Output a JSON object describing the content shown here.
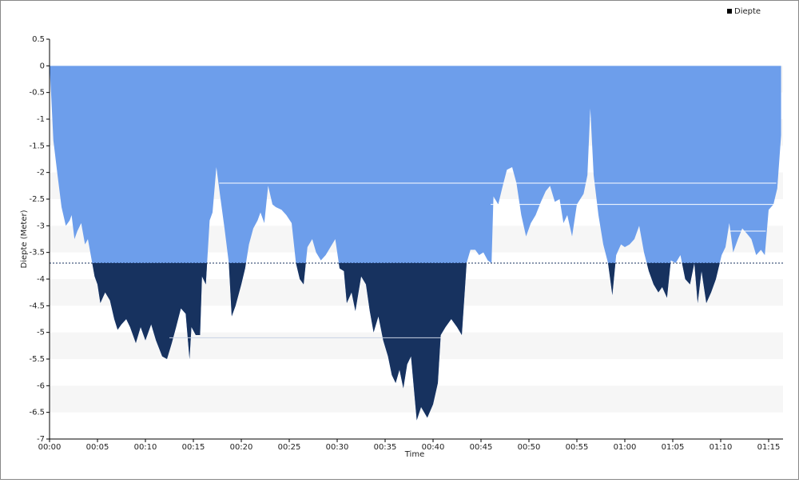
{
  "chart_data": {
    "type": "area",
    "y_label": "Diepte (Meter)",
    "x_label": "Time",
    "legend": "top-right",
    "grid": true,
    "xlim": [
      0,
      76.5
    ],
    "ylim": [
      -7,
      0.5
    ],
    "yticks": [
      0.5,
      0,
      -0.5,
      -1,
      -1.5,
      -2,
      -2.5,
      -3,
      -3.5,
      -4,
      -4.5,
      -5,
      -5.5,
      -6,
      -6.5,
      -7
    ],
    "xticks": [
      {
        "value": 0,
        "label": "00:00"
      },
      {
        "value": 5,
        "label": "00:05"
      },
      {
        "value": 10,
        "label": "00:10"
      },
      {
        "value": 15,
        "label": "00:15"
      },
      {
        "value": 20,
        "label": "00:20"
      },
      {
        "value": 25,
        "label": "00:25"
      },
      {
        "value": 30,
        "label": "00:30"
      },
      {
        "value": 35,
        "label": "00:35"
      },
      {
        "value": 40,
        "label": "00:40"
      },
      {
        "value": 45,
        "label": "00:45"
      },
      {
        "value": 50,
        "label": "00:50"
      },
      {
        "value": 55,
        "label": "00:55"
      },
      {
        "value": 60,
        "label": "01:00"
      },
      {
        "value": 65,
        "label": "01:05"
      },
      {
        "value": 70,
        "label": "01:10"
      },
      {
        "value": 75,
        "label": "01:15"
      }
    ],
    "threshold": -3.7,
    "deep_color": "#17325f",
    "reference_lines": [
      {
        "y": -2.2,
        "x": [
          17.7,
          75.8
        ]
      },
      {
        "y": -2.6,
        "x": [
          46.0,
          75.8
        ]
      },
      {
        "y": -5.1,
        "x": [
          12.5,
          40.8
        ]
      },
      {
        "y": -3.1,
        "x": [
          70.9,
          74.7
        ]
      }
    ],
    "x": [
      0,
      0.17,
      0.4,
      0.8,
      1.25,
      1.7,
      2.1,
      2.3,
      2.6,
      2.9,
      3.3,
      3.7,
      4.0,
      4.3,
      4.7,
      5.0,
      5.3,
      5.8,
      6.3,
      6.75,
      7.1,
      7.5,
      8.0,
      8.4,
      9.0,
      9.5,
      10.0,
      10.6,
      11.1,
      11.75,
      12.25,
      12.75,
      13.2,
      13.7,
      14.2,
      14.6,
      14.8,
      15.25,
      15.7,
      15.9,
      16.3,
      16.7,
      17.0,
      17.4,
      17.8,
      18.25,
      18.7,
      19.0,
      19.4,
      20.0,
      20.4,
      20.8,
      21.25,
      21.7,
      22.0,
      22.4,
      22.8,
      23.25,
      23.6,
      24.2,
      24.7,
      25.25,
      25.7,
      26.1,
      26.5,
      26.9,
      27.4,
      27.8,
      28.3,
      28.8,
      29.3,
      29.8,
      30.25,
      30.7,
      31.0,
      31.5,
      31.9,
      32.5,
      33.0,
      33.4,
      33.8,
      34.3,
      34.8,
      35.3,
      35.7,
      36.1,
      36.5,
      36.9,
      37.3,
      37.7,
      38.0,
      38.3,
      38.75,
      39.4,
      40.0,
      40.5,
      40.8,
      41.3,
      41.9,
      42.5,
      43.0,
      43.5,
      43.9,
      44.4,
      44.8,
      45.25,
      45.7,
      46.1,
      46.3,
      46.8,
      47.2,
      47.7,
      48.25,
      48.7,
      49.2,
      49.7,
      50.2,
      50.7,
      51.25,
      51.75,
      52.2,
      52.7,
      53.2,
      53.6,
      54.0,
      54.5,
      55.0,
      55.7,
      56.1,
      56.4,
      56.75,
      57.25,
      57.75,
      58.25,
      58.7,
      59.1,
      59.6,
      60.0,
      60.5,
      61.0,
      61.5,
      62.0,
      62.5,
      63.0,
      63.5,
      63.9,
      64.4,
      64.8,
      65.3,
      65.8,
      66.3,
      66.8,
      67.25,
      67.6,
      68.0,
      68.5,
      69.0,
      69.5,
      70.1,
      70.5,
      70.9,
      71.3,
      71.8,
      72.25,
      72.75,
      73.2,
      73.7,
      74.2,
      74.6,
      75.0,
      75.5,
      75.9,
      76.3
    ],
    "series": [
      {
        "name": "Diepte",
        "color": "#6d9eeb",
        "values": [
          0,
          -0.55,
          -1.4,
          -2.0,
          -2.65,
          -3.0,
          -2.9,
          -2.8,
          -3.25,
          -3.1,
          -2.95,
          -3.35,
          -3.25,
          -3.55,
          -3.95,
          -4.1,
          -4.45,
          -4.25,
          -4.4,
          -4.75,
          -4.95,
          -4.85,
          -4.75,
          -4.9,
          -5.2,
          -4.9,
          -5.15,
          -4.85,
          -5.15,
          -5.45,
          -5.5,
          -5.2,
          -4.9,
          -4.55,
          -4.65,
          -5.5,
          -4.9,
          -5.05,
          -5.05,
          -3.95,
          -4.1,
          -2.9,
          -2.75,
          -1.9,
          -2.45,
          -3.05,
          -3.7,
          -4.7,
          -4.5,
          -4.1,
          -3.8,
          -3.35,
          -3.05,
          -2.9,
          -2.75,
          -2.95,
          -2.25,
          -2.6,
          -2.65,
          -2.7,
          -2.8,
          -2.95,
          -3.7,
          -4.0,
          -4.1,
          -3.4,
          -3.25,
          -3.5,
          -3.65,
          -3.55,
          -3.4,
          -3.25,
          -3.8,
          -3.85,
          -4.45,
          -4.25,
          -4.6,
          -3.95,
          -4.1,
          -4.6,
          -5.0,
          -4.7,
          -5.15,
          -5.45,
          -5.8,
          -5.95,
          -5.7,
          -6.05,
          -5.6,
          -5.45,
          -6.05,
          -6.65,
          -6.4,
          -6.6,
          -6.35,
          -5.95,
          -5.05,
          -4.9,
          -4.75,
          -4.9,
          -5.05,
          -3.7,
          -3.45,
          -3.45,
          -3.55,
          -3.5,
          -3.65,
          -3.7,
          -2.45,
          -2.6,
          -2.3,
          -1.95,
          -1.9,
          -2.2,
          -2.8,
          -3.2,
          -2.95,
          -2.8,
          -2.55,
          -2.35,
          -2.25,
          -2.55,
          -2.5,
          -2.95,
          -2.8,
          -3.2,
          -2.6,
          -2.4,
          -2.05,
          -0.8,
          -2.05,
          -2.8,
          -3.35,
          -3.7,
          -4.3,
          -3.55,
          -3.35,
          -3.4,
          -3.35,
          -3.25,
          -3.0,
          -3.5,
          -3.85,
          -4.1,
          -4.25,
          -4.15,
          -4.35,
          -3.65,
          -3.7,
          -3.55,
          -4.0,
          -4.1,
          -3.7,
          -4.45,
          -3.85,
          -4.45,
          -4.25,
          -4.0,
          -3.55,
          -3.4,
          -2.95,
          -3.5,
          -3.25,
          -3.05,
          -3.15,
          -3.25,
          -3.55,
          -3.45,
          -3.55,
          -2.7,
          -2.6,
          -2.3,
          -1.3
        ]
      }
    ]
  }
}
